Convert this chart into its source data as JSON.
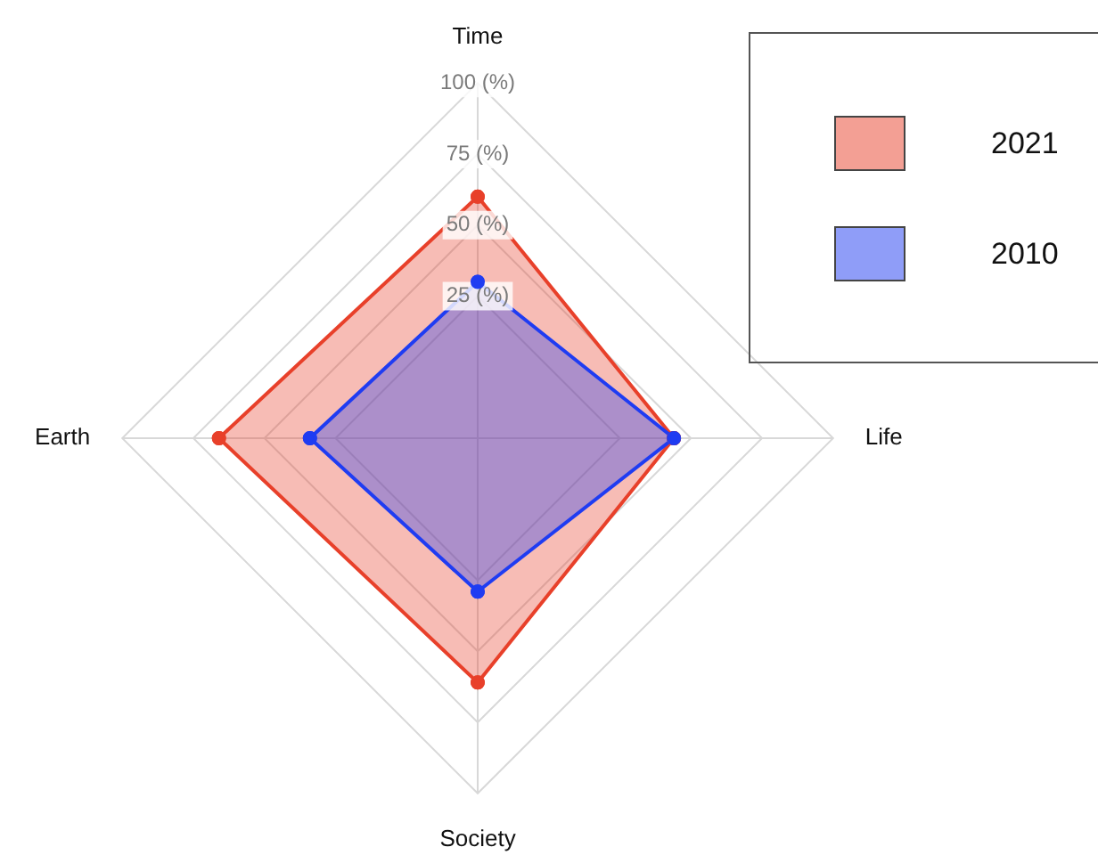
{
  "chart_data": {
    "type": "radar",
    "categories": [
      "Time",
      "Life",
      "Society",
      "Earth"
    ],
    "series": [
      {
        "name": "2021",
        "color": "#e8402a",
        "values": [
          60,
          44,
          61,
          66
        ]
      },
      {
        "name": "2010",
        "color": "#1f3cf2",
        "values": [
          30,
          44,
          29,
          34
        ]
      }
    ],
    "ylim": [
      -25,
      100
    ],
    "yticks": [
      {
        "value": 25,
        "label": "25 (%)"
      },
      {
        "value": 50,
        "label": "50 (%)"
      },
      {
        "value": 75,
        "label": "75 (%)"
      },
      {
        "value": 100,
        "label": "100 (%)"
      }
    ],
    "grid": true,
    "legend": "top right",
    "marker": "circle"
  }
}
